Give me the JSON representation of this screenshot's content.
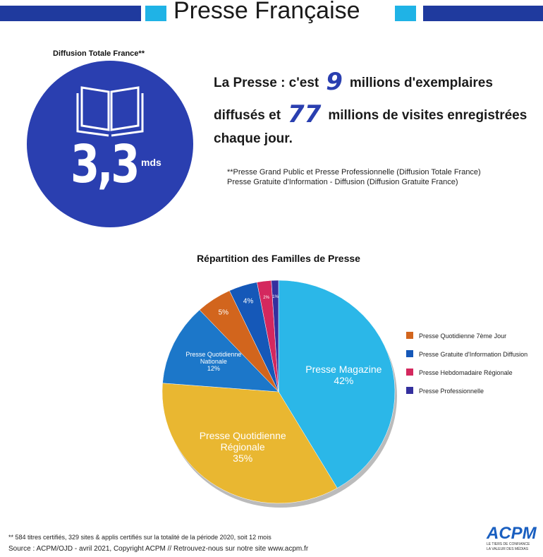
{
  "header": {
    "title": "Presse Française"
  },
  "diffusion": {
    "label": "Diffusion Totale France**",
    "value": "3,3",
    "unit": "mds"
  },
  "headline": {
    "line1_start": "La Presse : c'est",
    "figure1": "9",
    "line1_end": "millions d'exemplaires",
    "line2_start": "diffusés et",
    "figure2": "77",
    "line2_end": "millions de visites enregistrées",
    "line3": "chaque jour."
  },
  "notes": [
    "**Presse Grand Public et Presse Professionnelle (Diffusion Totale France)",
    "Presse Gratuite d'Information - Diffusion (Diffusion Gratuite France)"
  ],
  "footer": [
    "** 584 titres certifiés, 329 sites & applis certifiés sur la totalité de la période 2020, soit 12 mois",
    "Source : ACPM/OJD - avril 2021, Copyright ACPM // Retrouvez-nous sur notre site www.acpm.fr"
  ],
  "logo": {
    "name": "ACPM",
    "tagline1": "LE TIERS DE CONFIANCE",
    "tagline2": "LA VALEUR DES MÉDIAS"
  },
  "chart_data": {
    "type": "pie",
    "title": "Répartition des Familles de Presse",
    "categories": [
      "Presse Magazine",
      "Presse Quotidienne Régionale",
      "Presse Quotidienne Nationale",
      "Presse Quotidienne 7ème Jour",
      "Presse Gratuite d'Information Diffusion",
      "Presse Hebdomadaire Régionale",
      "Presse Professionnelle"
    ],
    "values": [
      42,
      35,
      12,
      5,
      4,
      2,
      1
    ],
    "value_labels": [
      "42%",
      "35%",
      "12%",
      "5%",
      "4%",
      "2%",
      "1%"
    ],
    "colors": [
      "#2bb7e8",
      "#e9b731",
      "#1c77c9",
      "#d2651d",
      "#1558b8",
      "#d4285e",
      "#34309e"
    ]
  }
}
